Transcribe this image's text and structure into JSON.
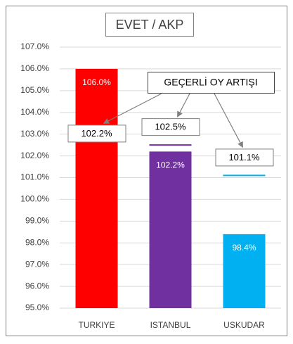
{
  "chart_data": {
    "type": "bar",
    "title": "EVET / AKP",
    "categories": [
      "TURKIYE",
      "ISTANBUL",
      "USKUDAR"
    ],
    "values": [
      106.0,
      102.2,
      98.4
    ],
    "value_labels": [
      "106.0%",
      "102.2%",
      "98.4%"
    ],
    "colors": [
      "#ff0000",
      "#7030a0",
      "#00b0f0"
    ],
    "markers": {
      "values": [
        102.2,
        102.5,
        101.1
      ],
      "value_labels": [
        "102.2%",
        "102.5%",
        "101.1%"
      ],
      "colors": [
        "#ff0000",
        "#7030a0",
        "#00b0f0"
      ]
    },
    "annotation": "GEÇERLİ OY ARTIŞI",
    "ylim": [
      95,
      107
    ],
    "yticks": [
      {
        "value": 95,
        "label": "95.0%"
      },
      {
        "value": 96,
        "label": "96.0%"
      },
      {
        "value": 97,
        "label": "97.0%"
      },
      {
        "value": 98,
        "label": "98.0%"
      },
      {
        "value": 99,
        "label": "99.0%"
      },
      {
        "value": 100,
        "label": "100.0%"
      },
      {
        "value": 101,
        "label": "101.0%"
      },
      {
        "value": 102,
        "label": "102.0%"
      },
      {
        "value": 103,
        "label": "103.0%"
      },
      {
        "value": 104,
        "label": "104.0%"
      },
      {
        "value": 105,
        "label": "105.0%"
      },
      {
        "value": 106,
        "label": "106.0%"
      },
      {
        "value": 107,
        "label": "107.0%"
      }
    ],
    "grid": true
  }
}
